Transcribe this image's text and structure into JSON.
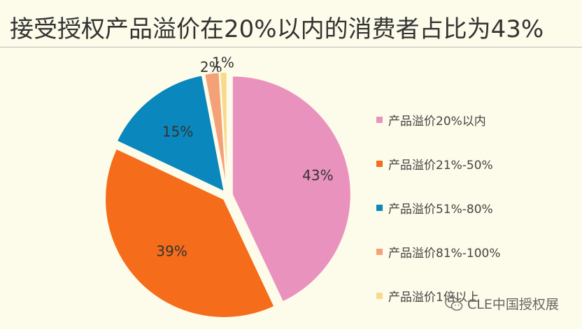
{
  "title": "接受授权产品溢价在20%以内的消费者占比为43%",
  "watermark": {
    "text": "CLE中国授权展",
    "icon": "wechat-icon"
  },
  "chart_data": {
    "type": "pie",
    "title": "接受授权产品溢价在20%以内的消费者占比为43%",
    "legend_position": "right",
    "categories": [
      "产品溢价20%以内",
      "产品溢价21%-50%",
      "产品溢价51%-80%",
      "产品溢价81%-100%",
      "产品溢价1倍以上"
    ],
    "values": [
      43,
      39,
      15,
      2,
      1
    ],
    "labels": [
      "43%",
      "39%",
      "15%",
      "2%",
      "1%"
    ],
    "colors": [
      "#ea92be",
      "#f56c1b",
      "#0a87bd",
      "#f4a178",
      "#f9d98b"
    ]
  }
}
